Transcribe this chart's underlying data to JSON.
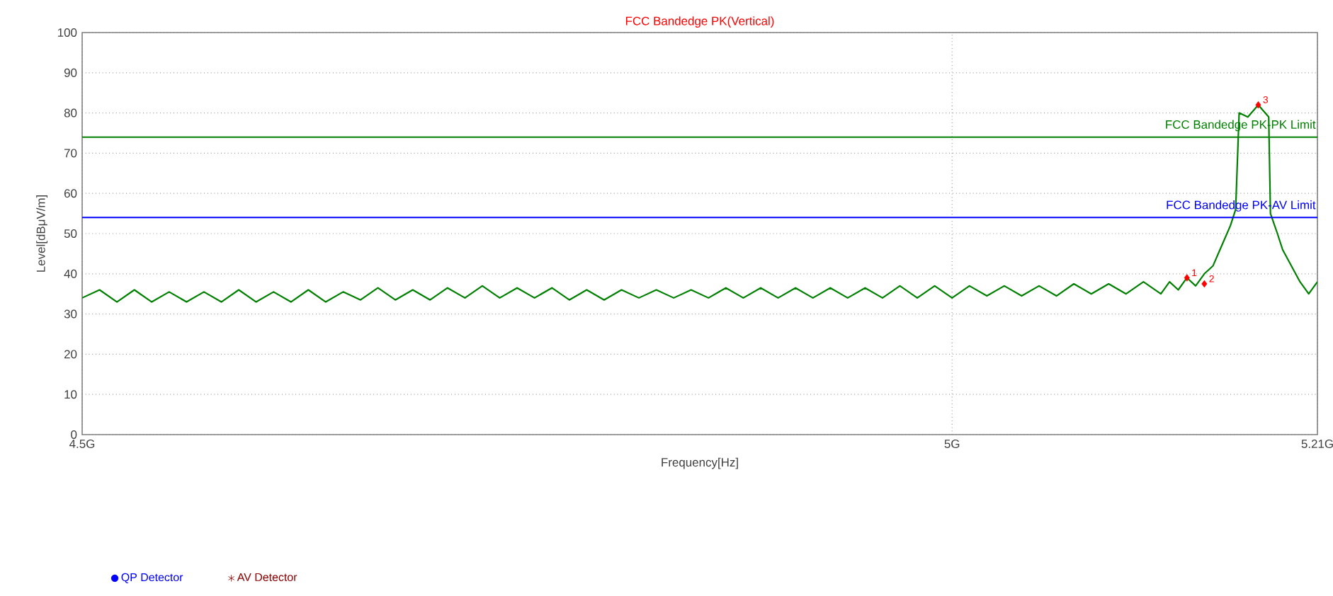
{
  "chart_data": {
    "type": "line",
    "title": "FCC Bandedge PK(Vertical)",
    "xlabel": "Frequency[Hz]",
    "ylabel": "Level[dBμV/m]",
    "xlim": [
      4.5,
      5.21
    ],
    "xticks": [
      {
        "value": 4.5,
        "label": "4.5G"
      },
      {
        "value": 5,
        "label": "5G"
      },
      {
        "value": 5.21,
        "label": "5.21G"
      }
    ],
    "ylim": [
      0,
      100
    ],
    "yticks": [
      0,
      10,
      20,
      30,
      40,
      50,
      60,
      70,
      80,
      90,
      100
    ],
    "grid": true,
    "legend": "bottom left",
    "marker": "none",
    "line_style": "solid",
    "series": [
      {
        "color": "#008000",
        "x": [
          4.5,
          4.51,
          4.52,
          4.53,
          4.54,
          4.55,
          4.56,
          4.57,
          4.58,
          4.59,
          4.6,
          4.61,
          4.62,
          4.63,
          4.64,
          4.65,
          4.66,
          4.67,
          4.68,
          4.69,
          4.7,
          4.71,
          4.72,
          4.73,
          4.74,
          4.75,
          4.76,
          4.77,
          4.78,
          4.79,
          4.8,
          4.81,
          4.82,
          4.83,
          4.84,
          4.85,
          4.86,
          4.87,
          4.88,
          4.89,
          4.9,
          4.91,
          4.92,
          4.93,
          4.94,
          4.95,
          4.96,
          4.97,
          4.98,
          4.99,
          5.0,
          5.01,
          5.02,
          5.03,
          5.04,
          5.05,
          5.06,
          5.07,
          5.08,
          5.09,
          5.1,
          5.11,
          5.12,
          5.125,
          5.13,
          5.135,
          5.14,
          5.145,
          5.15,
          5.155,
          5.16,
          5.163,
          5.165,
          5.17,
          5.176,
          5.18,
          5.182,
          5.183,
          5.187,
          5.19,
          5.195,
          5.2,
          5.205,
          5.21
        ],
        "values": [
          34,
          36,
          33,
          36,
          33,
          35.5,
          33,
          35.5,
          33,
          36,
          33,
          35.5,
          33,
          36,
          33,
          35.5,
          33.5,
          36.5,
          33.5,
          36,
          33.5,
          36.5,
          34,
          37,
          34,
          36.5,
          34,
          36.5,
          33.5,
          36,
          33.5,
          36,
          34,
          36,
          34,
          36,
          34,
          36.5,
          34,
          36.5,
          34,
          36.5,
          34,
          36.5,
          34,
          36.5,
          34,
          37,
          34,
          37,
          34,
          37,
          34.5,
          37,
          34.5,
          37,
          34.5,
          37.5,
          35,
          37.5,
          35,
          38,
          35,
          38,
          36,
          39,
          37,
          40,
          42,
          47,
          52,
          56,
          80,
          79,
          82,
          80,
          79,
          55,
          50,
          46,
          42,
          38,
          35,
          38
        ]
      },
      {
        "type": "scatter",
        "color": "#ff0000",
        "marker": "diamond",
        "x": [
          5.135,
          5.145,
          5.176
        ],
        "values": [
          39,
          37.5,
          82
        ]
      },
      {
        "type": "scatter",
        "name": "QP Detector",
        "color": "#0000ff",
        "marker": "circle"
      },
      {
        "type": "scatter",
        "name": "AV Detector",
        "color": "#8b0000",
        "marker": "star"
      }
    ],
    "ref_lines": [
      {
        "axis": "y",
        "value": 74,
        "label": "FCC Bandedge PK-PK Limit",
        "color": "#008000",
        "line_style": "solid"
      },
      {
        "axis": "y",
        "value": 54,
        "label": "FCC Bandedge PK-AV Limit",
        "color": "#0000ff",
        "line_style": "solid"
      }
    ],
    "annotations": [
      {
        "text": "1",
        "x": 5.135,
        "y": 39
      },
      {
        "text": "2",
        "x": 5.145,
        "y": 37.5
      },
      {
        "text": "3",
        "x": 5.176,
        "y": 82
      }
    ]
  }
}
